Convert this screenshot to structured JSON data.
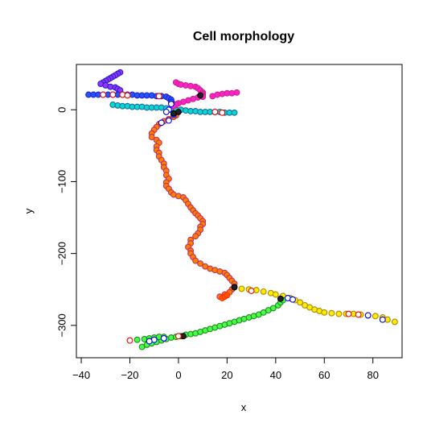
{
  "chart_data": {
    "type": "scatter",
    "title": "Cell morphology",
    "xlabel": "x",
    "ylabel": "y",
    "xlim": [
      -42,
      92
    ],
    "ylim": [
      -345,
      63
    ],
    "x_ticks": [
      -40,
      -20,
      0,
      20,
      40,
      60,
      80
    ],
    "y_ticks": [
      0,
      -100,
      -200,
      -300
    ],
    "grid": false,
    "legend": "none",
    "marker": "open-circle",
    "branches": [
      {
        "stroke": "#c03060",
        "fill": "#ff7f00",
        "points": [
          [
            -1,
            -8
          ],
          [
            -2,
            -10
          ],
          [
            -4,
            -13
          ],
          [
            -6,
            -16
          ],
          [
            -8,
            -20
          ],
          [
            -9,
            -24
          ],
          [
            -10,
            -28
          ],
          [
            -11,
            -33
          ],
          [
            -11,
            -38
          ],
          [
            -9,
            -42
          ],
          [
            -8,
            -46
          ],
          [
            -9,
            -51
          ],
          [
            -9,
            -56
          ],
          [
            -8,
            -60
          ],
          [
            -8,
            -65
          ],
          [
            -7,
            -70
          ],
          [
            -6,
            -75
          ],
          [
            -6,
            -80
          ],
          [
            -5,
            -85
          ],
          [
            -5,
            -91
          ],
          [
            -4,
            -96
          ],
          [
            -5,
            -101
          ],
          [
            -5,
            -106
          ],
          [
            -4,
            -110
          ],
          [
            -3,
            -115
          ],
          [
            -2,
            -118
          ],
          [
            0,
            -120
          ],
          [
            2,
            -122
          ],
          [
            3,
            -126
          ],
          [
            4,
            -131
          ],
          [
            5,
            -136
          ],
          [
            6,
            -140
          ],
          [
            7,
            -144
          ],
          [
            8,
            -147
          ],
          [
            9,
            -151
          ],
          [
            10,
            -155
          ],
          [
            10,
            -159
          ],
          [
            9,
            -163
          ],
          [
            9,
            -167
          ],
          [
            8,
            -172
          ],
          [
            7,
            -176
          ],
          [
            5,
            -181
          ],
          [
            5,
            -186
          ],
          [
            4,
            -191
          ],
          [
            5,
            -196
          ],
          [
            5,
            -200
          ],
          [
            6,
            -205
          ],
          [
            7,
            -210
          ],
          [
            9,
            -214
          ],
          [
            11,
            -218
          ],
          [
            13,
            -221
          ],
          [
            15,
            -223
          ],
          [
            17,
            -225
          ],
          [
            19,
            -227
          ],
          [
            20,
            -230
          ],
          [
            21,
            -234
          ],
          [
            22,
            -238
          ],
          [
            23,
            -242
          ],
          [
            23,
            -246
          ],
          [
            22,
            -250
          ],
          [
            21,
            -254
          ],
          [
            19,
            -257
          ],
          [
            17,
            -260
          ]
        ]
      },
      {
        "stroke": "#2222cc",
        "fill": "#9933ff",
        "points": [
          [
            -24,
            52
          ],
          [
            -25,
            50
          ],
          [
            -26,
            48
          ],
          [
            -27,
            46
          ],
          [
            -28,
            44
          ],
          [
            -29,
            42
          ],
          [
            -30,
            40
          ],
          [
            -31,
            38
          ],
          [
            -32,
            36
          ],
          [
            -30,
            34
          ],
          [
            -28,
            32
          ],
          [
            -26,
            31
          ],
          [
            -25,
            29
          ],
          [
            -24,
            27
          ]
        ]
      },
      {
        "stroke": "#2222cc",
        "fill": "#2255ff",
        "points": [
          [
            -37,
            21
          ],
          [
            -35,
            21
          ],
          [
            -33,
            21
          ],
          [
            -31,
            21
          ],
          [
            -29,
            21
          ],
          [
            -27,
            21
          ],
          [
            -25,
            21
          ],
          [
            -23,
            21
          ],
          [
            -21,
            21
          ],
          [
            -19,
            21
          ],
          [
            -17,
            20
          ],
          [
            -15,
            20
          ],
          [
            -13,
            20
          ],
          [
            -11,
            20
          ],
          [
            -9,
            19
          ],
          [
            -7,
            19
          ],
          [
            -5,
            18
          ],
          [
            -4,
            16
          ],
          [
            -3,
            14
          ],
          [
            -3,
            11
          ],
          [
            -2,
            8
          ],
          [
            -2,
            5
          ],
          [
            -2,
            2
          ],
          [
            -2,
            -1
          ],
          [
            -2,
            -4
          ],
          [
            -2,
            -7
          ]
        ]
      },
      {
        "stroke": "#2266aa",
        "fill": "#00ddcc",
        "points": [
          [
            -27,
            7
          ],
          [
            -25,
            6
          ],
          [
            -23,
            5
          ],
          [
            -21,
            5
          ],
          [
            -19,
            4
          ],
          [
            -17,
            4
          ],
          [
            -15,
            4
          ],
          [
            -13,
            3
          ],
          [
            -11,
            3
          ],
          [
            -9,
            3
          ],
          [
            -7,
            3
          ],
          [
            -5,
            2
          ],
          [
            -3,
            1
          ],
          [
            -1,
            0
          ],
          [
            1,
            0
          ],
          [
            3,
            -1
          ],
          [
            5,
            -2
          ],
          [
            7,
            -2
          ],
          [
            9,
            -3
          ],
          [
            11,
            -3
          ],
          [
            13,
            -3
          ],
          [
            15,
            -3
          ],
          [
            17,
            -3
          ],
          [
            19,
            -4
          ],
          [
            21,
            -4
          ],
          [
            23,
            -4
          ]
        ]
      },
      {
        "stroke": "#cc2288",
        "fill": "#ff22cc",
        "points": [
          [
            -1,
            38
          ],
          [
            0,
            36
          ],
          [
            1,
            35
          ],
          [
            3,
            34
          ],
          [
            5,
            33
          ],
          [
            7,
            32
          ],
          [
            8,
            30
          ],
          [
            9,
            27
          ],
          [
            10,
            24
          ],
          [
            10,
            22
          ],
          [
            10,
            20
          ],
          [
            10,
            18
          ],
          [
            8,
            17
          ],
          [
            6,
            15
          ],
          [
            4,
            13
          ],
          [
            2,
            11
          ],
          [
            0,
            9
          ],
          [
            -1,
            7
          ],
          [
            -2,
            5
          ],
          [
            14,
            19
          ],
          [
            16,
            21
          ],
          [
            18,
            22
          ],
          [
            20,
            23
          ],
          [
            22,
            23
          ],
          [
            24,
            24
          ]
        ]
      },
      {
        "stroke": "#aa8800",
        "fill": "#ffee00",
        "points": [
          [
            26,
            -249
          ],
          [
            29,
            -250
          ],
          [
            32,
            -251
          ],
          [
            35,
            -253
          ],
          [
            38,
            -255
          ],
          [
            40,
            -257
          ],
          [
            43,
            -259
          ],
          [
            46,
            -262
          ],
          [
            48,
            -265
          ],
          [
            50,
            -268
          ],
          [
            52,
            -272
          ],
          [
            54,
            -275
          ],
          [
            56,
            -278
          ],
          [
            58,
            -280
          ],
          [
            60,
            -282
          ],
          [
            63,
            -283
          ],
          [
            66,
            -284
          ],
          [
            69,
            -284
          ],
          [
            72,
            -284
          ],
          [
            75,
            -285
          ],
          [
            78,
            -286
          ],
          [
            81,
            -287
          ],
          [
            84,
            -289
          ],
          [
            86,
            -292
          ],
          [
            89,
            -295
          ]
        ]
      },
      {
        "stroke": "#228822",
        "fill": "#44ff44",
        "points": [
          [
            -15,
            -330
          ],
          [
            -13,
            -327
          ],
          [
            -11,
            -325
          ],
          [
            -9,
            -323
          ],
          [
            -7,
            -321
          ],
          [
            -5,
            -319
          ],
          [
            -3,
            -317
          ],
          [
            -1,
            -316
          ],
          [
            1,
            -315
          ],
          [
            3,
            -313
          ],
          [
            5,
            -312
          ],
          [
            7,
            -311
          ],
          [
            9,
            -309
          ],
          [
            11,
            -307
          ],
          [
            13,
            -305
          ],
          [
            15,
            -303
          ],
          [
            17,
            -301
          ],
          [
            19,
            -299
          ],
          [
            21,
            -297
          ],
          [
            23,
            -295
          ],
          [
            25,
            -293
          ],
          [
            27,
            -291
          ],
          [
            29,
            -289
          ],
          [
            31,
            -287
          ],
          [
            33,
            -285
          ],
          [
            35,
            -282
          ],
          [
            37,
            -279
          ],
          [
            39,
            -276
          ],
          [
            41,
            -272
          ],
          [
            42,
            -268
          ],
          [
            43,
            -265
          ],
          [
            -17,
            -320
          ],
          [
            -14,
            -319
          ],
          [
            -12,
            -318
          ],
          [
            -10,
            -317
          ],
          [
            -8,
            -316
          ],
          [
            -6,
            -316
          ]
        ]
      },
      {
        "stroke": "#ff3300",
        "fill": "#ff5500",
        "points": [
          [
            18,
            -262
          ],
          [
            19,
            -260
          ],
          [
            20,
            -258
          ]
        ]
      },
      {
        "stroke": "#000000",
        "fill": "#222222",
        "points": [
          [
            -2,
            -5
          ],
          [
            0,
            -3
          ],
          [
            9,
            20
          ],
          [
            2,
            -315
          ],
          [
            42,
            -263
          ],
          [
            23,
            -247
          ]
        ]
      },
      {
        "stroke": "#ee0000",
        "fill": "#ffffff",
        "points": [
          [
            -31,
            21
          ],
          [
            -27,
            21
          ],
          [
            -23,
            21
          ],
          [
            -21,
            20
          ],
          [
            15,
            -3
          ],
          [
            18,
            -4
          ],
          [
            -8,
            19
          ],
          [
            30,
            -252
          ],
          [
            70,
            -284
          ],
          [
            74,
            -285
          ],
          [
            -20,
            -321
          ],
          [
            0,
            -315
          ]
        ]
      },
      {
        "stroke": "#0000ee",
        "fill": "#ffffff",
        "points": [
          [
            -4,
            0
          ],
          [
            -5,
            -3
          ],
          [
            -4,
            -15
          ],
          [
            -7,
            -18
          ],
          [
            -3,
            8
          ],
          [
            45,
            -262
          ],
          [
            47,
            -264
          ],
          [
            78,
            -286
          ],
          [
            -10,
            -320
          ],
          [
            -12,
            -322
          ],
          [
            -6,
            -318
          ],
          [
            84,
            -292
          ]
        ]
      }
    ]
  }
}
